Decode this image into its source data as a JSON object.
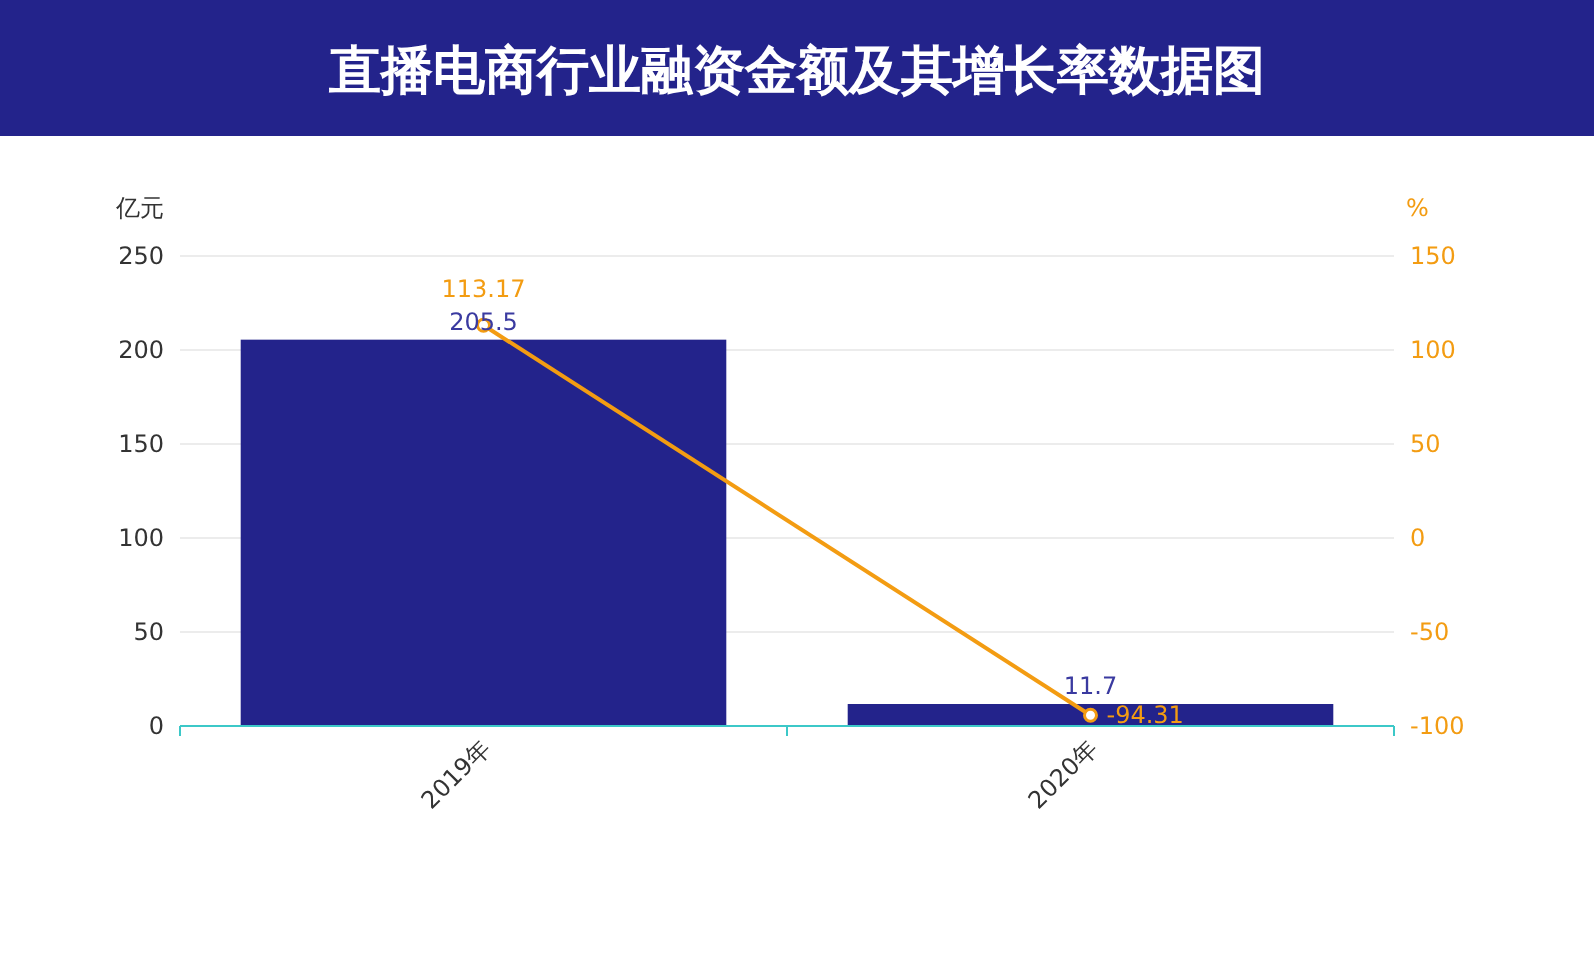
{
  "chart_data": {
    "type": "bar",
    "title": "直播电商行业融资金额及其增长率数据图",
    "categories": [
      "2019年",
      "2020年"
    ],
    "ylabel": "亿元",
    "y2label": "%",
    "series": [
      {
        "color": "#23238b",
        "values": [
          205.5,
          11.7
        ]
      },
      {
        "type": "line",
        "axis": "y2",
        "color": "#f39c12",
        "values": [
          113.17,
          -94.31
        ]
      }
    ],
    "ylim": [
      0,
      250
    ],
    "yticks": [
      0,
      50,
      100,
      150,
      200,
      250
    ],
    "y2lim": [
      -100,
      150
    ],
    "y2ticks": [
      -100,
      -50,
      0,
      50,
      100,
      150
    ],
    "grid": "y",
    "marker": "circle",
    "data_labels": true
  }
}
